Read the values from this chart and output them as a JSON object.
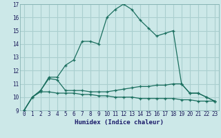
{
  "xlabel": "Humidex (Indice chaleur)",
  "bg_color": "#cce8e8",
  "grid_color": "#aacfcf",
  "line_color": "#1a6e5e",
  "xlim": [
    -0.5,
    23.5
  ],
  "ylim": [
    9,
    17
  ],
  "xticks": [
    0,
    1,
    2,
    3,
    4,
    5,
    6,
    7,
    8,
    9,
    10,
    11,
    12,
    13,
    14,
    15,
    16,
    17,
    18,
    19,
    20,
    21,
    22,
    23
  ],
  "yticks": [
    9,
    10,
    11,
    12,
    13,
    14,
    15,
    16,
    17
  ],
  "line1_y": [
    9.0,
    10.0,
    10.5,
    11.5,
    11.5,
    12.4,
    12.8,
    14.2,
    14.2,
    14.0,
    16.0,
    16.6,
    17.0,
    16.6,
    15.8,
    15.2,
    14.6,
    14.8,
    15.0,
    11.0,
    10.3,
    10.3,
    10.0,
    9.7
  ],
  "line2_y": [
    9.0,
    10.0,
    10.5,
    11.4,
    11.3,
    10.5,
    10.5,
    10.5,
    10.4,
    10.4,
    10.4,
    10.5,
    10.6,
    10.7,
    10.8,
    10.8,
    10.9,
    10.9,
    11.0,
    11.0,
    10.3,
    10.3,
    10.0,
    9.7
  ],
  "line3_y": [
    9.0,
    10.0,
    10.4,
    10.4,
    10.3,
    10.3,
    10.3,
    10.2,
    10.2,
    10.1,
    10.1,
    10.0,
    10.0,
    10.0,
    9.9,
    9.9,
    9.9,
    9.9,
    9.9,
    9.8,
    9.8,
    9.7,
    9.7,
    9.7
  ]
}
